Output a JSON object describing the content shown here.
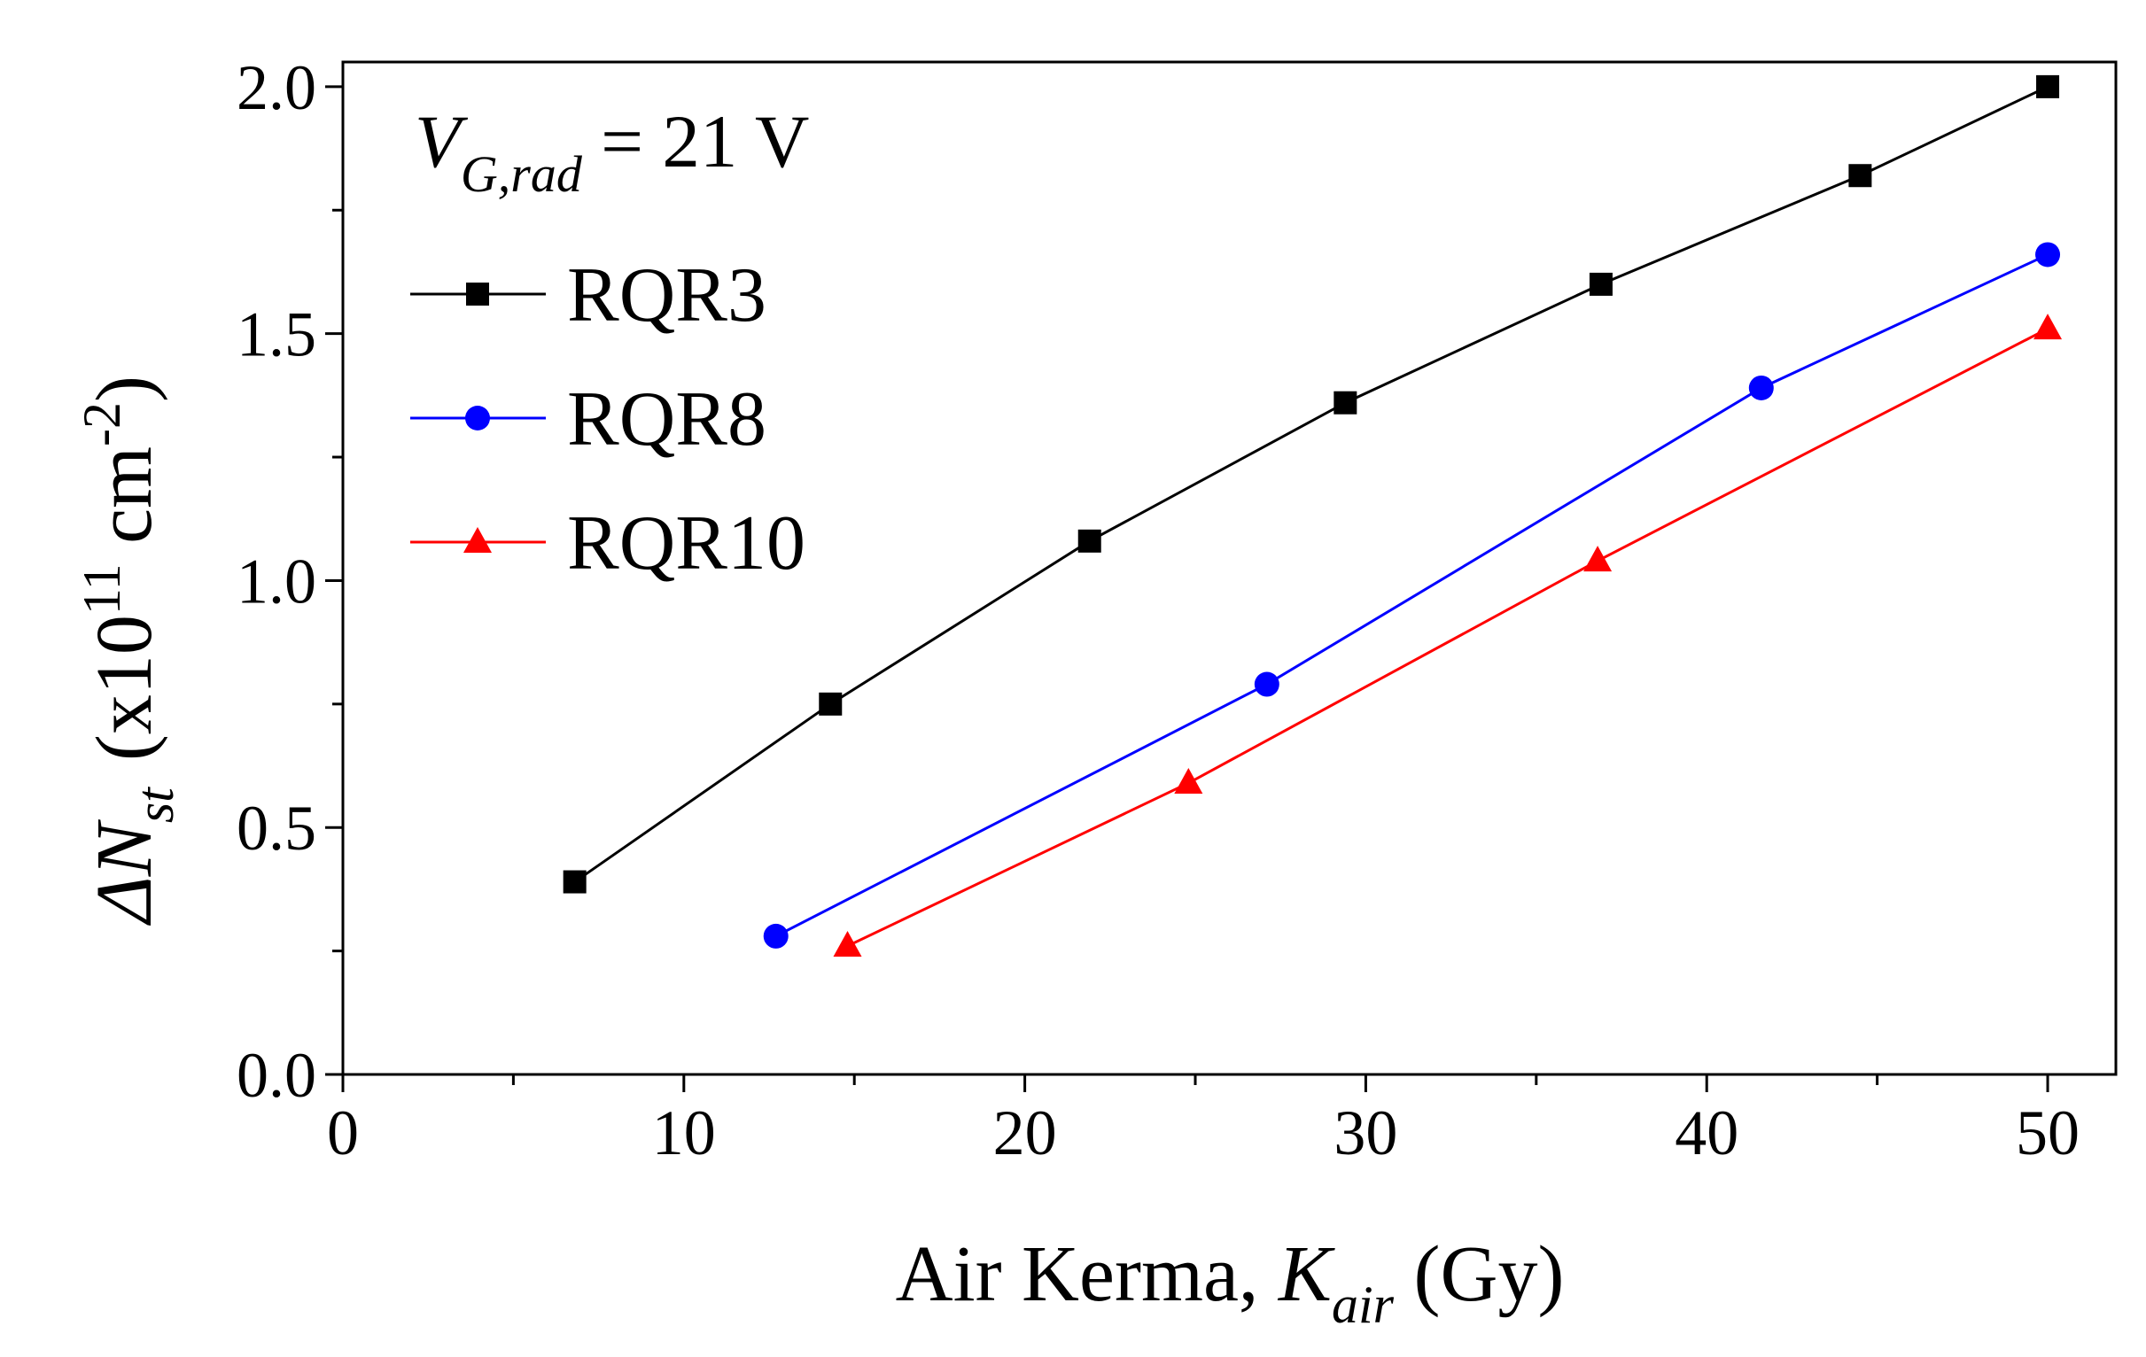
{
  "chart_data": {
    "type": "line",
    "annotation": {
      "main": "V",
      "sub": "G,rad",
      "rest": " = 21 V"
    },
    "xlabel": {
      "main": "Air Kerma, ",
      "symbol": "K",
      "sub": "air",
      "rest": " (Gy)"
    },
    "ylabel": {
      "symbol": "ΔN",
      "sub": "st",
      "open": "(x10",
      "exp": "11",
      "unit": " cm",
      "unitexp": "-2",
      "close": ")"
    },
    "xlim": [
      0,
      52
    ],
    "ylim": [
      0,
      2.05
    ],
    "xticks": [
      0,
      10,
      20,
      30,
      40,
      50
    ],
    "xminor": [
      5,
      15,
      25,
      35,
      45
    ],
    "yticks": [
      {
        "value": 0,
        "label": "0.0"
      },
      0.5,
      {
        "value": 1,
        "label": "1.0"
      },
      1.5,
      {
        "value": 2,
        "label": "2.0"
      }
    ],
    "yminor": [
      0.25,
      0.75,
      1.25,
      1.75
    ],
    "series": [
      {
        "name": "RQR3",
        "color": "#000000",
        "marker": "square",
        "x": [
          6.8,
          14.3,
          21.9,
          29.4,
          36.9,
          44.5,
          50
        ],
        "values": [
          0.39,
          0.75,
          1.08,
          1.36,
          1.6,
          1.82,
          2.0
        ]
      },
      {
        "name": "RQR8",
        "color": "#0000ff",
        "marker": "circle",
        "x": [
          12.7,
          27.1,
          41.6,
          50
        ],
        "values": [
          0.28,
          0.79,
          1.39,
          1.66
        ]
      },
      {
        "name": "RQR10",
        "color": "#ff0000",
        "marker": "triangle",
        "x": [
          14.8,
          24.8,
          36.8,
          50
        ],
        "values": [
          0.26,
          0.59,
          1.04,
          1.51
        ]
      }
    ]
  }
}
